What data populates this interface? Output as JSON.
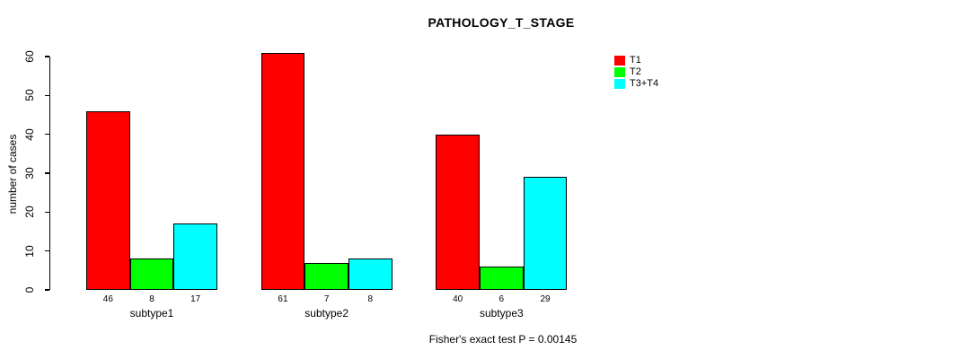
{
  "figure": {
    "title": "PATHOLOGY_T_STAGE",
    "ylabel": "number of cases",
    "annotation": "Fisher's exact test P = 0.00145"
  },
  "chart_data": {
    "type": "bar",
    "title": "PATHOLOGY_T_STAGE",
    "xlabel": "",
    "ylabel": "number of cases",
    "categories": [
      "subtype1",
      "subtype2",
      "subtype3"
    ],
    "series": [
      {
        "name": "T1",
        "color": "#FF0000",
        "values": [
          46,
          61,
          40
        ]
      },
      {
        "name": "T2",
        "color": "#00FF00",
        "values": [
          8,
          7,
          6
        ]
      },
      {
        "name": "T3+T4",
        "color": "#00FFFF",
        "values": [
          17,
          8,
          29
        ]
      }
    ],
    "ylim": [
      0,
      60
    ],
    "yticks": [
      0,
      10,
      20,
      30,
      40,
      50,
      60
    ],
    "bar_value_labels": [
      [
        46,
        61,
        40
      ],
      [
        8,
        7,
        6
      ],
      [
        17,
        8,
        29
      ]
    ],
    "grid": false,
    "legend_position": "right",
    "annotation": "Fisher's exact test P = 0.00145"
  }
}
